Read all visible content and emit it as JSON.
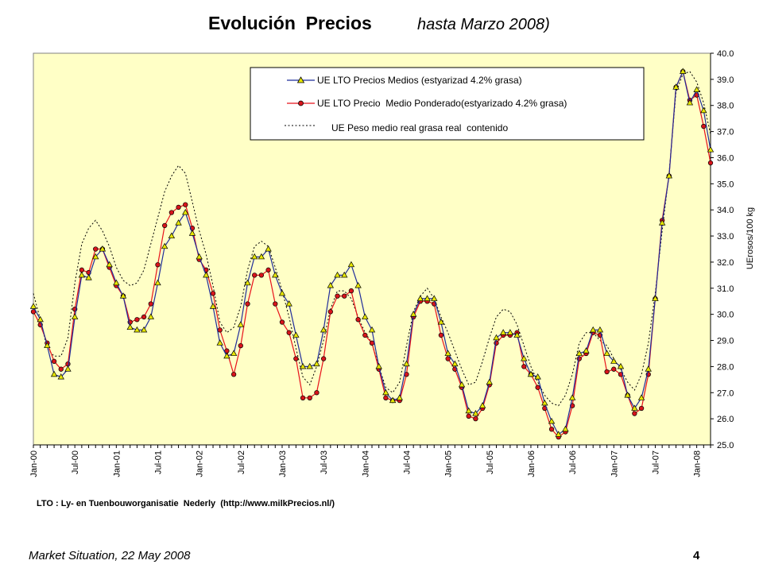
{
  "header": {
    "title": "Evolución  Precios",
    "subtitle": "hasta Marzo 2008)"
  },
  "footer": {
    "source": "LTO : Ly- en Tuenbouworganisatie  Nederly  (http://www.milkPrecios.nl/)",
    "left": "Market Situation, 22 May 2008",
    "page": "4"
  },
  "chart_data": {
    "type": "line",
    "ylabel": "UErosos/100 kg",
    "ylim": [
      25.0,
      40.0
    ],
    "ytick_step": 1.0,
    "grid": false,
    "legend_position": "top-right",
    "x_tick_labels": [
      "Jan-00",
      "Jul-00",
      "Jan-01",
      "Jul-01",
      "Jan-02",
      "Jul-02",
      "Jan-03",
      "Jul-03",
      "Jan-04",
      "Jul-04",
      "Jan-05",
      "Jul-05",
      "Jan-06",
      "Jul-06",
      "Jan-07",
      "Jul-07",
      "Jan-08"
    ],
    "x_range": [
      "2000-01",
      "2008-03"
    ],
    "colors": {
      "plot_bg": "#ffffc6",
      "series1": "#1f2c9a",
      "series1_marker": "#e8e800",
      "series2": "#e8101a",
      "series2_marker": "#d8141b",
      "series3": "#000000"
    },
    "series": [
      {
        "name": "UE LTO Precios Medios (estyarizad 4.2% grasa)",
        "marker": "triangle",
        "values": [
          30.3,
          29.8,
          28.8,
          27.7,
          27.6,
          27.9,
          29.9,
          31.5,
          31.4,
          32.2,
          32.5,
          31.9,
          31.2,
          30.7,
          29.5,
          29.4,
          29.4,
          29.9,
          31.2,
          32.6,
          33.0,
          33.5,
          33.9,
          33.1,
          32.2,
          31.5,
          30.3,
          28.9,
          28.4,
          28.5,
          29.6,
          31.2,
          32.2,
          32.2,
          32.5,
          31.5,
          30.8,
          30.4,
          29.2,
          28.0,
          28.0,
          28.1,
          29.4,
          31.1,
          31.5,
          31.5,
          31.9,
          31.1,
          29.9,
          29.4,
          28.0,
          27.0,
          26.7,
          26.8,
          28.1,
          30.0,
          30.6,
          30.6,
          30.6,
          29.7,
          28.5,
          28.1,
          27.3,
          26.3,
          26.2,
          26.5,
          27.4,
          29.1,
          29.3,
          29.3,
          29.2,
          28.3,
          27.7,
          27.6,
          26.6,
          25.9,
          25.4,
          25.6,
          26.8,
          28.5,
          28.6,
          29.4,
          29.4,
          28.5,
          28.2,
          28.0,
          26.9,
          26.4,
          26.8,
          27.9,
          30.6,
          33.5,
          35.3,
          38.7,
          39.3,
          38.1,
          38.6,
          37.8,
          36.3
        ]
      },
      {
        "name": "UE LTO Precio  Medio Ponderado(estyarizado 4.2% grasa)",
        "marker": "circle",
        "values": [
          30.1,
          29.6,
          28.9,
          28.2,
          27.9,
          28.1,
          30.2,
          31.7,
          31.6,
          32.5,
          32.5,
          31.8,
          31.1,
          30.7,
          29.7,
          29.8,
          29.9,
          30.4,
          31.9,
          33.4,
          33.9,
          34.1,
          34.2,
          33.3,
          32.1,
          31.7,
          30.8,
          29.4,
          28.6,
          27.7,
          28.8,
          30.4,
          31.5,
          31.5,
          31.7,
          30.4,
          29.7,
          29.3,
          28.3,
          26.8,
          26.8,
          27.0,
          28.3,
          30.1,
          30.7,
          30.7,
          30.9,
          29.8,
          29.2,
          28.9,
          27.9,
          26.8,
          26.7,
          26.7,
          27.7,
          29.9,
          30.5,
          30.5,
          30.4,
          29.2,
          28.3,
          27.9,
          27.2,
          26.1,
          26.0,
          26.4,
          27.3,
          28.9,
          29.2,
          29.2,
          29.3,
          28.0,
          27.7,
          27.2,
          26.4,
          25.6,
          25.3,
          25.5,
          26.5,
          28.3,
          28.5,
          29.3,
          29.2,
          27.8,
          27.9,
          27.7,
          26.9,
          26.2,
          26.4,
          27.7,
          30.6,
          33.6,
          35.3,
          38.7,
          39.3,
          38.2,
          38.4,
          37.2,
          35.8
        ]
      },
      {
        "name": "UE Peso medio real grasa real  contenido",
        "marker": "none",
        "values": [
          30.8,
          29.8,
          28.7,
          28.4,
          28.4,
          29.1,
          31.2,
          32.7,
          33.3,
          33.6,
          33.2,
          32.6,
          31.8,
          31.3,
          31.1,
          31.2,
          31.7,
          32.7,
          33.7,
          34.7,
          35.3,
          35.7,
          35.4,
          34.3,
          33.2,
          32.3,
          31.1,
          29.7,
          29.3,
          29.5,
          30.3,
          31.7,
          32.6,
          32.8,
          32.6,
          31.8,
          30.9,
          29.9,
          28.7,
          27.6,
          27.3,
          28.0,
          29.0,
          30.2,
          30.9,
          30.9,
          30.6,
          29.9,
          29.3,
          28.9,
          28.0,
          27.2,
          27.0,
          27.4,
          28.8,
          30.1,
          30.7,
          31.0,
          30.6,
          29.9,
          29.3,
          28.6,
          27.9,
          27.3,
          27.4,
          28.2,
          29.1,
          29.9,
          30.2,
          30.1,
          29.6,
          28.8,
          28.0,
          27.4,
          26.9,
          26.6,
          26.5,
          26.9,
          27.7,
          28.9,
          29.3,
          29.3,
          29.0,
          28.8,
          28.3,
          27.9,
          27.4,
          27.1,
          27.7,
          28.9,
          30.8,
          33.2,
          35.4,
          38.5,
          39.2,
          39.3,
          38.9,
          38.1,
          36.9
        ]
      }
    ]
  }
}
